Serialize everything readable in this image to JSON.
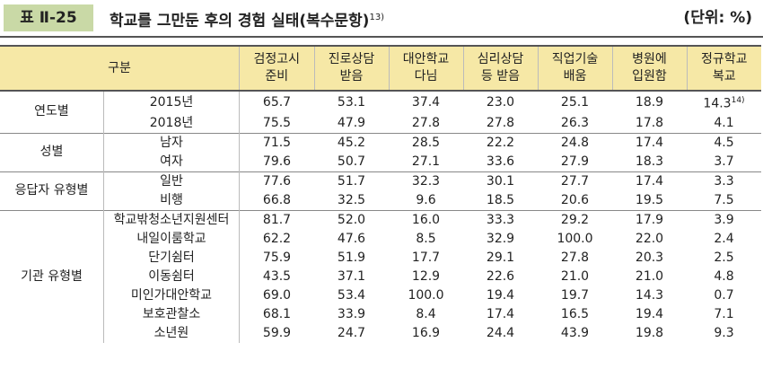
{
  "header": {
    "label": "표 Ⅱ-25",
    "title": "학교를 그만둔 후의 경험 실태(복수문항)",
    "title_note": "13)",
    "unit": "(단위: %)"
  },
  "table": {
    "columns": [
      "구분",
      [
        "검정고시",
        "준비"
      ],
      [
        "진로상담",
        "받음"
      ],
      [
        "대안학교",
        "다님"
      ],
      [
        "심리상담",
        "등 받음"
      ],
      [
        "직업기술",
        "배움"
      ],
      [
        "병원에",
        "입원함"
      ],
      [
        "정규학교",
        "복교"
      ]
    ],
    "groups": [
      {
        "name": "연도별",
        "rows": [
          {
            "label": "2015년",
            "values": [
              "65.7",
              "53.1",
              "37.4",
              "23.0",
              "25.1",
              "18.9",
              "14.3"
            ],
            "note": "14)"
          },
          {
            "label": "2018년",
            "values": [
              "75.5",
              "47.9",
              "27.8",
              "27.8",
              "26.3",
              "17.8",
              "4.1"
            ]
          }
        ]
      },
      {
        "name": "성별",
        "rows": [
          {
            "label": "남자",
            "values": [
              "71.5",
              "45.2",
              "28.5",
              "22.2",
              "24.8",
              "17.4",
              "4.5"
            ]
          },
          {
            "label": "여자",
            "values": [
              "79.6",
              "50.7",
              "27.1",
              "33.6",
              "27.9",
              "18.3",
              "3.7"
            ]
          }
        ]
      },
      {
        "name": "응답자 유형별",
        "rows": [
          {
            "label": "일반",
            "values": [
              "77.6",
              "51.7",
              "32.3",
              "30.1",
              "27.7",
              "17.4",
              "3.3"
            ]
          },
          {
            "label": "비행",
            "values": [
              "66.8",
              "32.5",
              "9.6",
              "18.5",
              "20.6",
              "19.5",
              "7.5"
            ]
          }
        ]
      },
      {
        "name": "기관 유형별",
        "rows": [
          {
            "label": "학교밖청소년지원센터",
            "values": [
              "81.7",
              "52.0",
              "16.0",
              "33.3",
              "29.2",
              "17.9",
              "3.9"
            ]
          },
          {
            "label": "내일이룸학교",
            "values": [
              "62.2",
              "47.6",
              "8.5",
              "32.9",
              "100.0",
              "22.0",
              "2.4"
            ]
          },
          {
            "label": "단기쉼터",
            "values": [
              "75.9",
              "51.9",
              "17.7",
              "29.1",
              "27.8",
              "20.3",
              "2.5"
            ]
          },
          {
            "label": "이동쉼터",
            "values": [
              "43.5",
              "37.1",
              "12.9",
              "22.6",
              "21.0",
              "21.0",
              "4.8"
            ]
          },
          {
            "label": "미인가대안학교",
            "values": [
              "69.0",
              "53.4",
              "100.0",
              "19.4",
              "19.7",
              "14.3",
              "0.7"
            ]
          },
          {
            "label": "보호관찰소",
            "values": [
              "68.1",
              "33.9",
              "8.4",
              "17.4",
              "16.5",
              "19.4",
              "7.1"
            ]
          },
          {
            "label": "소년원",
            "values": [
              "59.9",
              "24.7",
              "16.9",
              "24.4",
              "43.9",
              "19.8",
              "9.3"
            ]
          }
        ]
      }
    ]
  }
}
